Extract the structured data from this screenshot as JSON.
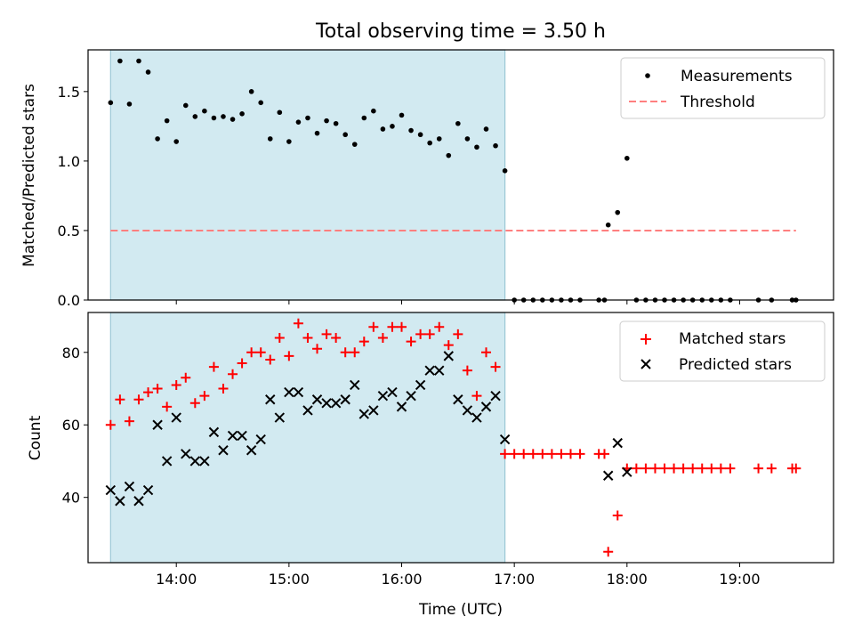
{
  "title": "Total observing time = 3.50 h",
  "xlabel": "Time (UTC)",
  "x_ticks": [
    "14:00",
    "15:00",
    "16:00",
    "17:00",
    "18:00",
    "19:00"
  ],
  "colors": {
    "shade": "#add8e6",
    "measurement": "#000000",
    "threshold": "#ff7f7f",
    "matched": "#ff0000",
    "predicted": "#000000"
  },
  "chart_data": [
    {
      "type": "scatter",
      "ylabel": "Matched/Predicted stars",
      "xlim": [
        "13:13",
        "19:50"
      ],
      "ylim": [
        0,
        1.8
      ],
      "y_ticks": [
        "0.0",
        "0.5",
        "1.0",
        "1.5"
      ],
      "shaded_interval": [
        "13:25",
        "16:55"
      ],
      "threshold": 0.5,
      "threshold_range": [
        "13:25",
        "19:30"
      ],
      "legend": {
        "position": "top-right",
        "entries": [
          "Measurements",
          "Threshold"
        ]
      },
      "series": [
        {
          "name": "Measurements",
          "points": [
            [
              "13:25",
              1.42
            ],
            [
              "13:30",
              1.72
            ],
            [
              "13:35",
              1.41
            ],
            [
              "13:40",
              1.72
            ],
            [
              "13:45",
              1.64
            ],
            [
              "13:50",
              1.16
            ],
            [
              "13:55",
              1.29
            ],
            [
              "14:00",
              1.14
            ],
            [
              "14:05",
              1.4
            ],
            [
              "14:10",
              1.32
            ],
            [
              "14:15",
              1.36
            ],
            [
              "14:20",
              1.31
            ],
            [
              "14:25",
              1.32
            ],
            [
              "14:30",
              1.3
            ],
            [
              "14:35",
              1.34
            ],
            [
              "14:40",
              1.5
            ],
            [
              "14:45",
              1.42
            ],
            [
              "14:50",
              1.16
            ],
            [
              "14:55",
              1.35
            ],
            [
              "15:00",
              1.14
            ],
            [
              "15:05",
              1.28
            ],
            [
              "15:10",
              1.31
            ],
            [
              "15:15",
              1.2
            ],
            [
              "15:20",
              1.29
            ],
            [
              "15:25",
              1.27
            ],
            [
              "15:30",
              1.19
            ],
            [
              "15:35",
              1.12
            ],
            [
              "15:40",
              1.31
            ],
            [
              "15:45",
              1.36
            ],
            [
              "15:50",
              1.23
            ],
            [
              "15:55",
              1.25
            ],
            [
              "16:00",
              1.33
            ],
            [
              "16:05",
              1.22
            ],
            [
              "16:10",
              1.19
            ],
            [
              "16:15",
              1.13
            ],
            [
              "16:20",
              1.16
            ],
            [
              "16:25",
              1.04
            ],
            [
              "16:30",
              1.27
            ],
            [
              "16:35",
              1.16
            ],
            [
              "16:40",
              1.1
            ],
            [
              "16:45",
              1.23
            ],
            [
              "16:50",
              1.11
            ],
            [
              "16:55",
              0.93
            ],
            [
              "17:00",
              0.0
            ],
            [
              "17:05",
              0.0
            ],
            [
              "17:10",
              0.0
            ],
            [
              "17:15",
              0.0
            ],
            [
              "17:20",
              0.0
            ],
            [
              "17:25",
              0.0
            ],
            [
              "17:30",
              0.0
            ],
            [
              "17:35",
              0.0
            ],
            [
              "17:45",
              0.0
            ],
            [
              "17:48",
              0.0
            ],
            [
              "17:50",
              0.54
            ],
            [
              "17:55",
              0.63
            ],
            [
              "18:00",
              1.02
            ],
            [
              "18:05",
              0.0
            ],
            [
              "18:10",
              0.0
            ],
            [
              "18:15",
              0.0
            ],
            [
              "18:20",
              0.0
            ],
            [
              "18:25",
              0.0
            ],
            [
              "18:30",
              0.0
            ],
            [
              "18:35",
              0.0
            ],
            [
              "18:40",
              0.0
            ],
            [
              "18:45",
              0.0
            ],
            [
              "18:50",
              0.0
            ],
            [
              "18:55",
              0.0
            ],
            [
              "19:10",
              0.0
            ],
            [
              "19:17",
              0.0
            ],
            [
              "19:28",
              0.0
            ],
            [
              "19:30",
              0.0
            ]
          ]
        }
      ]
    },
    {
      "type": "scatter",
      "ylabel": "Count",
      "xlabel": "Time (UTC)",
      "xlim": [
        "13:13",
        "19:50"
      ],
      "ylim": [
        22,
        91
      ],
      "y_ticks": [
        "40",
        "60",
        "80"
      ],
      "shaded_interval": [
        "13:25",
        "16:55"
      ],
      "legend": {
        "position": "top-right",
        "entries": [
          "Matched stars",
          "Predicted stars"
        ]
      },
      "series": [
        {
          "name": "Matched stars",
          "marker": "+",
          "points": [
            [
              "13:25",
              60
            ],
            [
              "13:30",
              67
            ],
            [
              "13:35",
              61
            ],
            [
              "13:40",
              67
            ],
            [
              "13:45",
              69
            ],
            [
              "13:50",
              70
            ],
            [
              "13:55",
              65
            ],
            [
              "14:00",
              71
            ],
            [
              "14:05",
              73
            ],
            [
              "14:10",
              66
            ],
            [
              "14:15",
              68
            ],
            [
              "14:20",
              76
            ],
            [
              "14:25",
              70
            ],
            [
              "14:30",
              74
            ],
            [
              "14:35",
              77
            ],
            [
              "14:40",
              80
            ],
            [
              "14:45",
              80
            ],
            [
              "14:50",
              78
            ],
            [
              "14:55",
              84
            ],
            [
              "15:00",
              79
            ],
            [
              "15:05",
              88
            ],
            [
              "15:10",
              84
            ],
            [
              "15:15",
              81
            ],
            [
              "15:20",
              85
            ],
            [
              "15:25",
              84
            ],
            [
              "15:30",
              80
            ],
            [
              "15:35",
              80
            ],
            [
              "15:40",
              83
            ],
            [
              "15:45",
              87
            ],
            [
              "15:50",
              84
            ],
            [
              "15:55",
              87
            ],
            [
              "16:00",
              87
            ],
            [
              "16:05",
              83
            ],
            [
              "16:10",
              85
            ],
            [
              "16:15",
              85
            ],
            [
              "16:20",
              87
            ],
            [
              "16:25",
              82
            ],
            [
              "16:30",
              85
            ],
            [
              "16:35",
              75
            ],
            [
              "16:40",
              68
            ],
            [
              "16:45",
              80
            ],
            [
              "16:50",
              76
            ],
            [
              "16:55",
              52
            ],
            [
              "17:00",
              52
            ],
            [
              "17:05",
              52
            ],
            [
              "17:10",
              52
            ],
            [
              "17:15",
              52
            ],
            [
              "17:20",
              52
            ],
            [
              "17:25",
              52
            ],
            [
              "17:30",
              52
            ],
            [
              "17:35",
              52
            ],
            [
              "17:45",
              52
            ],
            [
              "17:48",
              52
            ],
            [
              "17:50",
              25
            ],
            [
              "17:55",
              35
            ],
            [
              "18:00",
              48
            ],
            [
              "18:05",
              48
            ],
            [
              "18:10",
              48
            ],
            [
              "18:15",
              48
            ],
            [
              "18:20",
              48
            ],
            [
              "18:25",
              48
            ],
            [
              "18:30",
              48
            ],
            [
              "18:35",
              48
            ],
            [
              "18:40",
              48
            ],
            [
              "18:45",
              48
            ],
            [
              "18:50",
              48
            ],
            [
              "18:55",
              48
            ],
            [
              "19:10",
              48
            ],
            [
              "19:17",
              48
            ],
            [
              "19:28",
              48
            ],
            [
              "19:30",
              48
            ]
          ]
        },
        {
          "name": "Predicted stars",
          "marker": "x",
          "points": [
            [
              "13:25",
              42
            ],
            [
              "13:30",
              39
            ],
            [
              "13:35",
              43
            ],
            [
              "13:40",
              39
            ],
            [
              "13:45",
              42
            ],
            [
              "13:50",
              60
            ],
            [
              "13:55",
              50
            ],
            [
              "14:00",
              62
            ],
            [
              "14:05",
              52
            ],
            [
              "14:10",
              50
            ],
            [
              "14:15",
              50
            ],
            [
              "14:20",
              58
            ],
            [
              "14:25",
              53
            ],
            [
              "14:30",
              57
            ],
            [
              "14:35",
              57
            ],
            [
              "14:40",
              53
            ],
            [
              "14:45",
              56
            ],
            [
              "14:50",
              67
            ],
            [
              "14:55",
              62
            ],
            [
              "15:00",
              69
            ],
            [
              "15:05",
              69
            ],
            [
              "15:10",
              64
            ],
            [
              "15:15",
              67
            ],
            [
              "15:20",
              66
            ],
            [
              "15:25",
              66
            ],
            [
              "15:30",
              67
            ],
            [
              "15:35",
              71
            ],
            [
              "15:40",
              63
            ],
            [
              "15:45",
              64
            ],
            [
              "15:50",
              68
            ],
            [
              "15:55",
              69
            ],
            [
              "16:00",
              65
            ],
            [
              "16:05",
              68
            ],
            [
              "16:10",
              71
            ],
            [
              "16:15",
              75
            ],
            [
              "16:20",
              75
            ],
            [
              "16:25",
              79
            ],
            [
              "16:30",
              67
            ],
            [
              "16:35",
              64
            ],
            [
              "16:40",
              62
            ],
            [
              "16:45",
              65
            ],
            [
              "16:50",
              68
            ],
            [
              "16:55",
              56
            ],
            [
              "17:50",
              46
            ],
            [
              "17:55",
              55
            ],
            [
              "18:00",
              47
            ]
          ]
        }
      ]
    }
  ]
}
